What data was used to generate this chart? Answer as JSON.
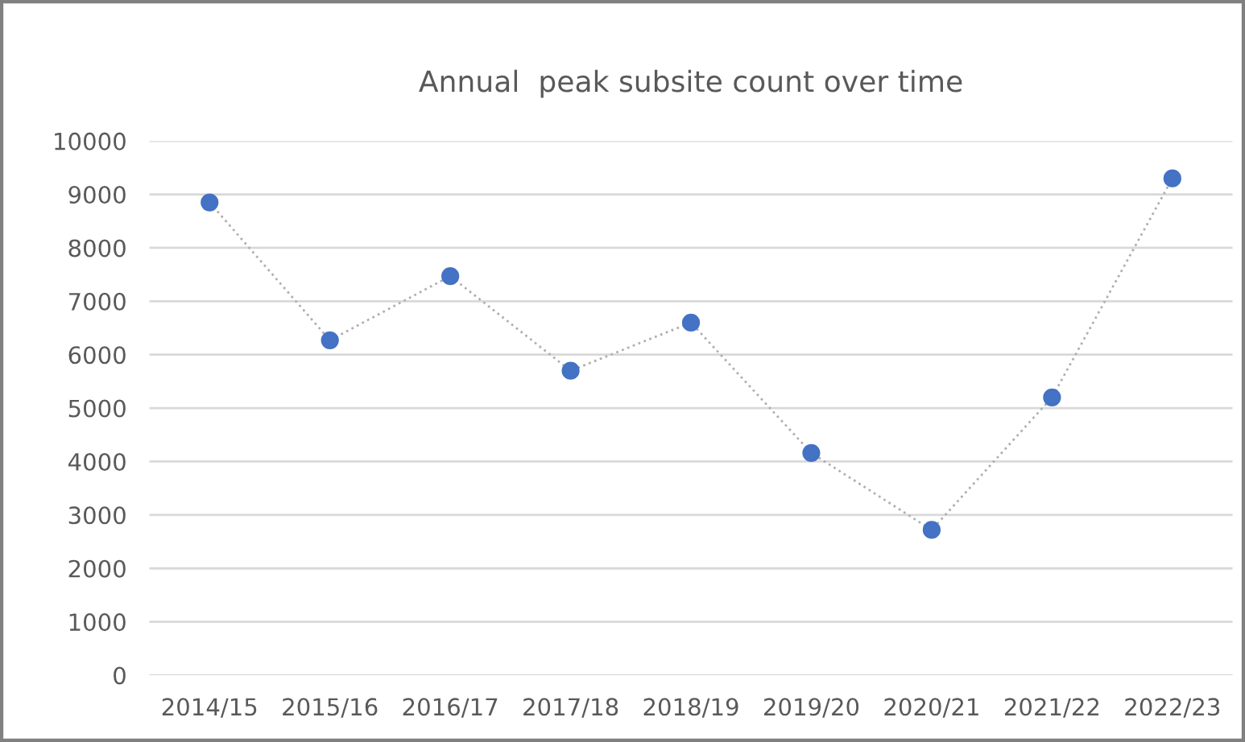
{
  "chart_data": {
    "type": "line",
    "title": "Annual  peak subsite count over time",
    "categories": [
      "2014/15",
      "2015/16",
      "2016/17",
      "2017/18",
      "2018/19",
      "2019/20",
      "2020/21",
      "2021/22",
      "2022/23"
    ],
    "series": [
      {
        "color": "#4472c4",
        "values": [
          8850,
          6270,
          7470,
          5700,
          6600,
          4160,
          2720,
          5200,
          9300
        ]
      }
    ],
    "ylim": [
      0,
      10000
    ],
    "yticks": [
      0,
      1000,
      2000,
      3000,
      4000,
      5000,
      6000,
      7000,
      8000,
      9000,
      10000
    ],
    "grid": "y",
    "legend": false,
    "marker": "circle",
    "line_style": "dotted"
  }
}
